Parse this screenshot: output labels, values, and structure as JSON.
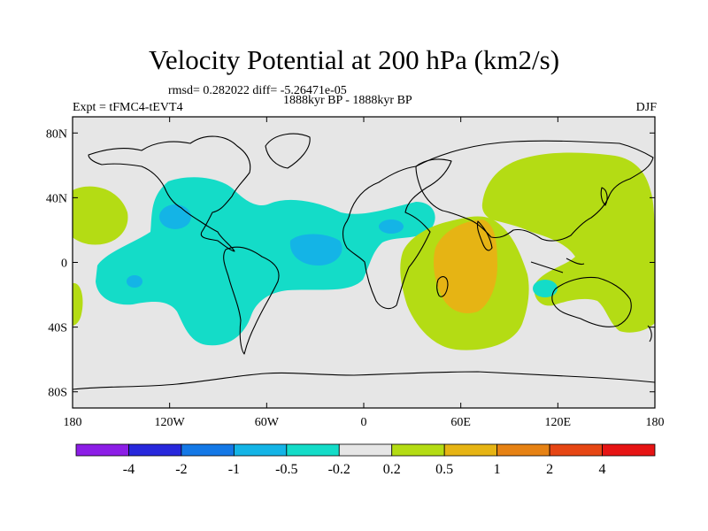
{
  "header": {
    "title": "Velocity Potential at 200 hPa (km2/s)",
    "stats": "rmsd= 0.282022 diff= -5.26471e-05",
    "experiment": "Expt = tFMC4-tEVT4",
    "period": "1888kyr BP - 1888kyr BP",
    "season": "DJF"
  },
  "axes": {
    "lon_ticks": [
      {
        "lon": -180,
        "label": "180"
      },
      {
        "lon": -120,
        "label": "120W"
      },
      {
        "lon": -60,
        "label": "60W"
      },
      {
        "lon": 0,
        "label": "0"
      },
      {
        "lon": 60,
        "label": "60E"
      },
      {
        "lon": 120,
        "label": "120E"
      },
      {
        "lon": 180,
        "label": "180"
      }
    ],
    "lat_ticks": [
      {
        "lat": 80,
        "label": "80N"
      },
      {
        "lat": 40,
        "label": "40N"
      },
      {
        "lat": 0,
        "label": "0"
      },
      {
        "lat": -40,
        "label": "40S"
      },
      {
        "lat": -80,
        "label": "80S"
      }
    ],
    "lon_range": [
      -180,
      180
    ],
    "lat_range": [
      -90,
      90
    ]
  },
  "colorbar": {
    "colors": [
      "#8c1ee6",
      "#2828dc",
      "#1478e6",
      "#14b4e6",
      "#14dcc8",
      "#e6e6e6",
      "#b4dc14",
      "#e6b414",
      "#e68214",
      "#e64614",
      "#e61414"
    ],
    "labels": [
      "-4",
      "-2",
      "-1",
      "-0.5",
      "-0.2",
      "0.2",
      "0.5",
      "1",
      "2",
      "4"
    ]
  },
  "chart_data": {
    "type": "heatmap",
    "title": "Velocity Potential at 200 hPa (km2/s)",
    "units": "km2/s",
    "level": "200 hPa",
    "season": "DJF",
    "levels": [
      -4,
      -2,
      -1,
      -0.5,
      -0.2,
      0.2,
      0.5,
      1,
      2,
      4
    ],
    "regions": [
      {
        "name": "Atlantic-Americas negative anomaly",
        "class": "-0.5 to -0.2",
        "center": [
          -60,
          5
        ]
      },
      {
        "name": "Indian Ocean-Africa positive anomaly",
        "class": "0.2 to 0.5",
        "center": [
          50,
          -5
        ]
      },
      {
        "name": "Western Indian Ocean maximum",
        "class": "0.5 to 1",
        "center": [
          65,
          -5
        ]
      },
      {
        "name": "Asia-Western Pacific positive anomaly",
        "class": "0.2 to 0.5",
        "center": [
          125,
          25
        ]
      }
    ]
  }
}
